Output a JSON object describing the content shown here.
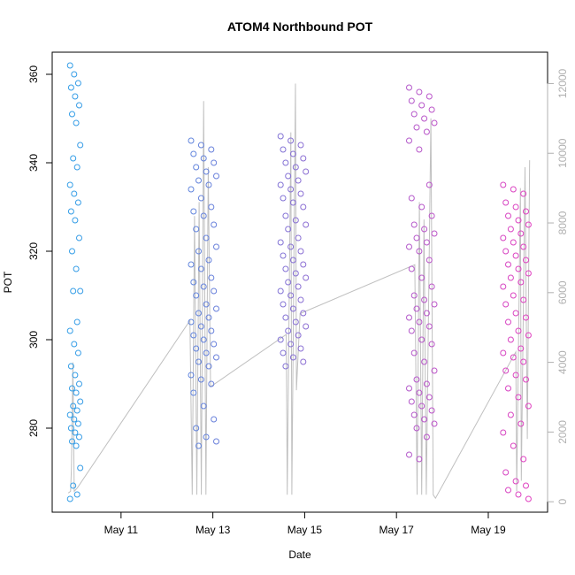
{
  "chart_data": {
    "type": "scatter",
    "title": "ATOM4 Northbound POT",
    "xlabel": "Date",
    "ylabel": "POT",
    "x_ticks": [
      "May 11",
      "May 13",
      "May 15",
      "May 17",
      "May 19"
    ],
    "y_ticks": [
      280,
      300,
      320,
      340,
      360
    ],
    "y2_ticks": [
      0,
      2000,
      4000,
      6000,
      8000,
      10000,
      12000
    ],
    "ylim": [
      261,
      365
    ],
    "y2lim": [
      -300,
      12900
    ],
    "xlim": [
      "2017-05-09T12:00",
      "2017-05-20T07:00"
    ],
    "x_axis_origin": "2017-05-09",
    "grid": false,
    "legend": "none",
    "colors": {
      "points_start": "#30a0e8",
      "points_end": "#e040c0",
      "right_series": "#c0c0c0",
      "right_axis": "#b0b0b0",
      "frame": "#000000"
    },
    "point_groups": [
      {
        "day": 10,
        "values": [
          362,
          360,
          358,
          357,
          355,
          353,
          351,
          349,
          344,
          341,
          339,
          335,
          333,
          331,
          329,
          327,
          323,
          320,
          316,
          311,
          311,
          304,
          302,
          299,
          297,
          294,
          292,
          290,
          289,
          288,
          286,
          285,
          284,
          283,
          282,
          281,
          280,
          279,
          278,
          277,
          276,
          271,
          267,
          265,
          264
        ]
      },
      {
        "day": 12.8,
        "values": [
          345,
          344,
          343,
          342,
          341,
          340,
          339,
          338,
          337,
          336,
          335,
          334,
          332,
          330,
          329,
          328,
          326,
          325,
          323,
          321,
          320,
          318,
          317,
          316,
          314,
          313,
          312,
          311,
          310,
          308,
          307,
          306,
          305,
          304,
          303,
          302,
          301,
          300,
          299,
          298,
          297,
          296,
          295,
          294,
          292,
          291,
          290,
          288,
          285,
          282,
          280,
          278,
          277,
          276
        ]
      },
      {
        "day": 14.75,
        "values": [
          346,
          345,
          344,
          343,
          342,
          341,
          340,
          339,
          338,
          337,
          336,
          335,
          334,
          333,
          332,
          331,
          330,
          328,
          327,
          326,
          325,
          323,
          322,
          321,
          320,
          319,
          318,
          317,
          316,
          315,
          314,
          313,
          312,
          311,
          310,
          309,
          308,
          307,
          306,
          305,
          304,
          303,
          302,
          301,
          300,
          299,
          298,
          297,
          296,
          295,
          294
        ]
      },
      {
        "day": 17.55,
        "values": [
          357,
          356,
          355,
          354,
          353,
          352,
          351,
          350,
          349,
          348,
          347,
          345,
          343,
          335,
          332,
          330,
          328,
          326,
          325,
          324,
          323,
          322,
          321,
          320,
          318,
          316,
          314,
          312,
          310,
          309,
          308,
          307,
          306,
          305,
          304,
          303,
          302,
          300,
          299,
          297,
          295,
          293,
          291,
          290,
          289,
          288,
          287,
          286,
          285,
          284,
          283,
          282,
          281,
          280,
          278,
          274,
          273
        ]
      },
      {
        "day": 19.6,
        "values": [
          335,
          334,
          333,
          331,
          330,
          329,
          328,
          327,
          326,
          325,
          324,
          323,
          322,
          321,
          320,
          319,
          318,
          317,
          316,
          315,
          314,
          313,
          312,
          310,
          309,
          308,
          306,
          305,
          304,
          302,
          301,
          300,
          298,
          297,
          296,
          295,
          293,
          292,
          291,
          289,
          287,
          285,
          283,
          281,
          279,
          276,
          273,
          270,
          268,
          267,
          266,
          265,
          264
        ]
      }
    ],
    "right_series": {
      "name": "",
      "points": [
        {
          "day": 9.85,
          "value": 250
        },
        {
          "day": 9.9,
          "value": 300
        },
        {
          "day": 9.92,
          "value": 1000
        },
        {
          "day": 9.95,
          "value": 4000
        },
        {
          "day": 9.98,
          "value": 300
        },
        {
          "day": 10.05,
          "value": 400
        },
        {
          "day": 12.5,
          "value": 5200
        },
        {
          "day": 12.55,
          "value": 200
        },
        {
          "day": 12.6,
          "value": 8200
        },
        {
          "day": 12.65,
          "value": 200
        },
        {
          "day": 12.7,
          "value": 8600
        },
        {
          "day": 12.75,
          "value": 200
        },
        {
          "day": 12.8,
          "value": 11500
        },
        {
          "day": 12.85,
          "value": 200
        },
        {
          "day": 12.9,
          "value": 9600
        },
        {
          "day": 12.95,
          "value": 3300
        },
        {
          "day": 14.6,
          "value": 4800
        },
        {
          "day": 14.62,
          "value": 200
        },
        {
          "day": 14.7,
          "value": 10600
        },
        {
          "day": 14.72,
          "value": 200
        },
        {
          "day": 14.8,
          "value": 12000
        },
        {
          "day": 14.82,
          "value": 3200
        },
        {
          "day": 14.9,
          "value": 5400
        },
        {
          "day": 17.4,
          "value": 6800
        },
        {
          "day": 17.45,
          "value": 200
        },
        {
          "day": 17.5,
          "value": 8600
        },
        {
          "day": 17.55,
          "value": 200
        },
        {
          "day": 17.6,
          "value": 8100
        },
        {
          "day": 17.65,
          "value": 200
        },
        {
          "day": 17.75,
          "value": 11000
        },
        {
          "day": 17.8,
          "value": 200
        },
        {
          "day": 17.85,
          "value": 100
        },
        {
          "day": 19.6,
          "value": 4300
        },
        {
          "day": 19.62,
          "value": 300
        },
        {
          "day": 19.7,
          "value": 9000
        },
        {
          "day": 19.72,
          "value": 600
        },
        {
          "day": 19.8,
          "value": 9600
        },
        {
          "day": 19.85,
          "value": 1800
        },
        {
          "day": 19.9,
          "value": 9800
        }
      ]
    }
  }
}
